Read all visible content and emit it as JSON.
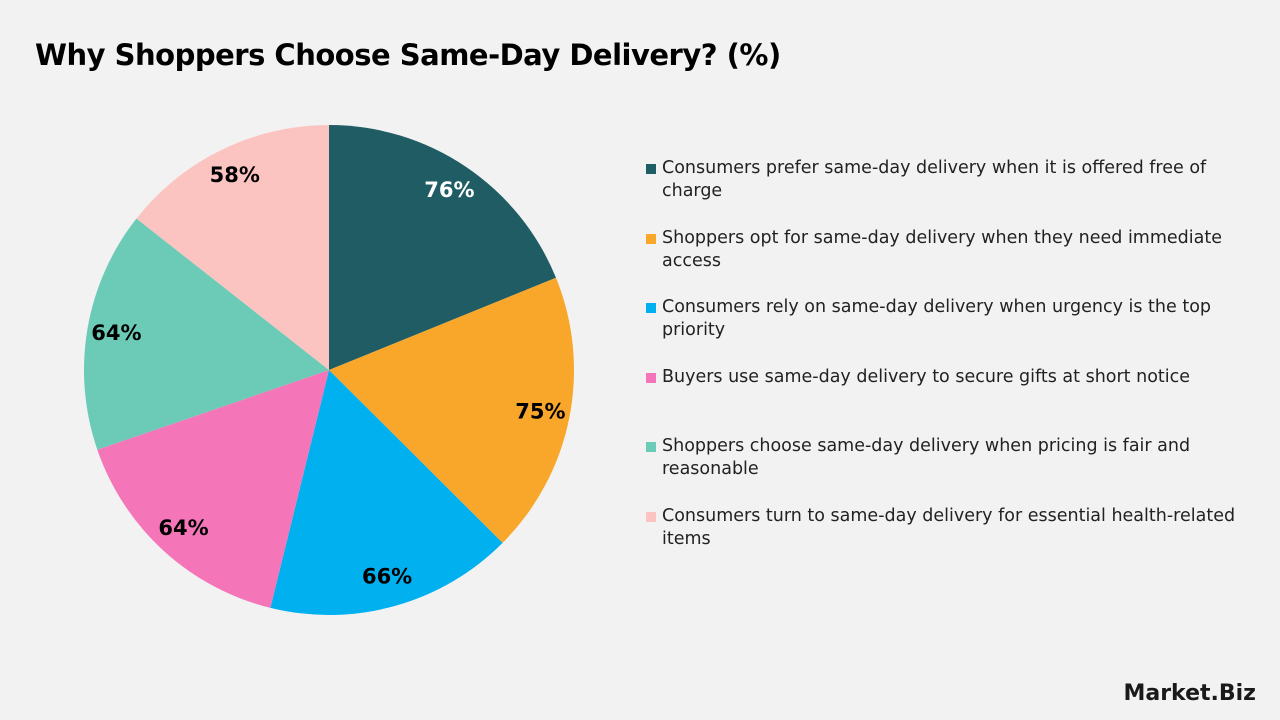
{
  "chart_data": {
    "type": "pie",
    "title": "Why Shoppers Choose Same-Day Delivery? (%)",
    "categories": [
      "Consumers prefer same-day delivery when it is offered free of charge",
      "Shoppers opt for same-day delivery when they need immediate access",
      "Consumers rely on same-day delivery when urgency is the top priority",
      "Buyers use same-day delivery to secure gifts at short notice",
      "Shoppers choose same-day delivery when pricing is fair and reasonable",
      "Consumers turn to same-day delivery for essential health-related items"
    ],
    "values": [
      76,
      75,
      66,
      64,
      64,
      58
    ],
    "value_labels": [
      "76%",
      "75%",
      "66%",
      "64%",
      "64%",
      "58%"
    ],
    "colors": [
      "#1f5c63",
      "#f9a72a",
      "#00b0ef",
      "#f476b8",
      "#6ccbb7",
      "#fcc4c0"
    ]
  },
  "logo_text": "Market.Biz"
}
